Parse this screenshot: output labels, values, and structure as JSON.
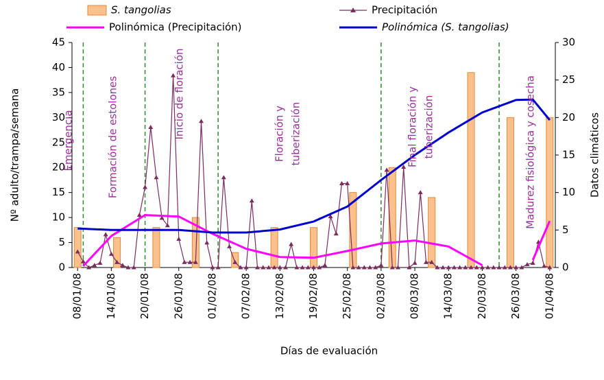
{
  "chart_data": {
    "type": "combo",
    "x_label": "Días de evaluación",
    "y_label": "Nº adulto/trampa/semana",
    "y2_label": "Datos climáticos",
    "xlim": [
      "07/01/08",
      "02/04/08"
    ],
    "xticks": [
      "08/01/08",
      "14/01/08",
      "20/01/08",
      "26/01/08",
      "01/02/08",
      "07/02/08",
      "13/02/08",
      "19/02/08",
      "25/02/08",
      "02/03/08",
      "08/03/08",
      "14/03/08",
      "20/03/08",
      "26/03/08",
      "01/04/08"
    ],
    "ylim": [
      0,
      45
    ],
    "yticks": [
      0,
      5,
      10,
      15,
      20,
      25,
      30,
      35,
      40,
      45
    ],
    "y2lim": [
      0,
      30
    ],
    "y2ticks": [
      0,
      5,
      10,
      15,
      20,
      25,
      30
    ],
    "phase_lines": [
      "09/01/08",
      "20/01/08",
      "02/02/08",
      "02/03/08",
      "23/03/08"
    ],
    "annotations": [
      {
        "lines": [
          "Emergencia"
        ]
      },
      {
        "lines": [
          "Formación de estolones"
        ]
      },
      {
        "lines": [
          "Inicio de floración"
        ]
      },
      {
        "lines": [
          "Floración y",
          "tuberización"
        ]
      },
      {
        "lines": [
          "Final floración y",
          "tuberización"
        ]
      },
      {
        "lines": [
          "Madurez fisiológica y cosecha"
        ]
      }
    ],
    "series": [
      {
        "name": "S. tangolias",
        "type": "bar",
        "color": "#fbc08c",
        "x": [
          "08/01/08",
          "15/01/08",
          "22/01/08",
          "29/01/08",
          "05/02/08",
          "12/02/08",
          "19/02/08",
          "26/02/08",
          "04/03/08",
          "11/03/08",
          "18/03/08",
          "25/03/08",
          "01/04/08"
        ],
        "values": [
          8,
          6,
          8,
          10,
          3,
          8,
          8,
          15,
          20,
          14,
          39,
          30,
          30
        ]
      },
      {
        "name": "Precipitación",
        "type": "marker-line",
        "color": "#7b2c5f",
        "axis": "y2",
        "x": [
          "08/01/08",
          "09/01/08",
          "10/01/08",
          "11/01/08",
          "12/01/08",
          "13/01/08",
          "14/01/08",
          "15/01/08",
          "16/01/08",
          "17/01/08",
          "18/01/08",
          "19/01/08",
          "20/01/08",
          "21/01/08",
          "22/01/08",
          "23/01/08",
          "24/01/08",
          "25/01/08",
          "26/01/08",
          "27/01/08",
          "28/01/08",
          "29/01/08",
          "30/01/08",
          "31/01/08",
          "01/02/08",
          "02/02/08",
          "03/02/08",
          "04/02/08",
          "05/02/08",
          "06/02/08",
          "07/02/08",
          "08/02/08",
          "09/02/08",
          "10/02/08",
          "11/02/08",
          "12/02/08",
          "13/02/08",
          "14/02/08",
          "15/02/08",
          "16/02/08",
          "17/02/08",
          "18/02/08",
          "19/02/08",
          "20/02/08",
          "21/02/08",
          "22/02/08",
          "23/02/08",
          "24/02/08",
          "25/02/08",
          "26/02/08",
          "27/02/08",
          "28/02/08",
          "29/02/08",
          "01/03/08",
          "02/03/08",
          "03/03/08",
          "04/03/08",
          "05/03/08",
          "06/03/08",
          "07/03/08",
          "08/03/08",
          "09/03/08",
          "10/03/08",
          "11/03/08",
          "12/03/08",
          "13/03/08",
          "14/03/08",
          "15/03/08",
          "16/03/08",
          "17/03/08",
          "18/03/08",
          "19/03/08",
          "20/03/08",
          "21/03/08",
          "22/03/08",
          "23/03/08",
          "24/03/08",
          "25/03/08",
          "26/03/08",
          "27/03/08",
          "28/03/08",
          "29/03/08",
          "30/03/08",
          "31/03/08",
          "01/04/08"
        ],
        "values": [
          2.1,
          0.8,
          0,
          0.3,
          0.6,
          4.4,
          1.8,
          0.7,
          0.3,
          0,
          0,
          7,
          10.7,
          18.7,
          12,
          6.6,
          5.6,
          25.6,
          3.8,
          0.7,
          0.7,
          0.7,
          19.5,
          3.3,
          0,
          0,
          12,
          2.8,
          0.7,
          0,
          0,
          8.9,
          0,
          0,
          0,
          0,
          0,
          0,
          3.1,
          0,
          0,
          0,
          0,
          0,
          0.3,
          6.8,
          4.5,
          11.2,
          11.2,
          0,
          0,
          0,
          0,
          0,
          0.3,
          13,
          0,
          0,
          13.4,
          0,
          0.6,
          10,
          0.7,
          0.7,
          0,
          0,
          0,
          0,
          0,
          0,
          0,
          0,
          0,
          0,
          0,
          0,
          0,
          0,
          0,
          0,
          0.4,
          0.6,
          3.4,
          0.2,
          0
        ]
      },
      {
        "name": "Polinómica (Precipitación)",
        "type": "line",
        "color": "#ff00ff",
        "axis": "y2",
        "x": [
          "09/01/08",
          "14/01/08",
          "20/01/08",
          "26/01/08",
          "01/02/08",
          "07/02/08",
          "13/02/08",
          "19/02/08",
          "25/02/08",
          "02/03/08",
          "08/03/08",
          "14/03/08",
          "20/03/08",
          "26/03/08",
          "29/03/08",
          "01/04/08"
        ],
        "values": [
          0.2,
          4.2,
          7,
          6.8,
          4.5,
          2.5,
          1.4,
          1.3,
          2.2,
          3.2,
          3.6,
          2.8,
          0.3,
          null,
          1,
          6.2
        ]
      },
      {
        "name": "Polinómica (S. tangolias)",
        "type": "line",
        "color": "#0000cc",
        "x": [
          "08/01/08",
          "14/01/08",
          "20/01/08",
          "26/01/08",
          "01/02/08",
          "07/02/08",
          "13/02/08",
          "19/02/08",
          "25/02/08",
          "02/03/08",
          "08/03/08",
          "14/03/08",
          "20/03/08",
          "26/03/08",
          "29/03/08",
          "01/04/08"
        ],
        "values": [
          7.8,
          7.5,
          7.5,
          7.5,
          7,
          7,
          7.6,
          9.2,
          12.2,
          17.5,
          22.5,
          27,
          31,
          33.5,
          33.6,
          29.5
        ]
      }
    ]
  }
}
